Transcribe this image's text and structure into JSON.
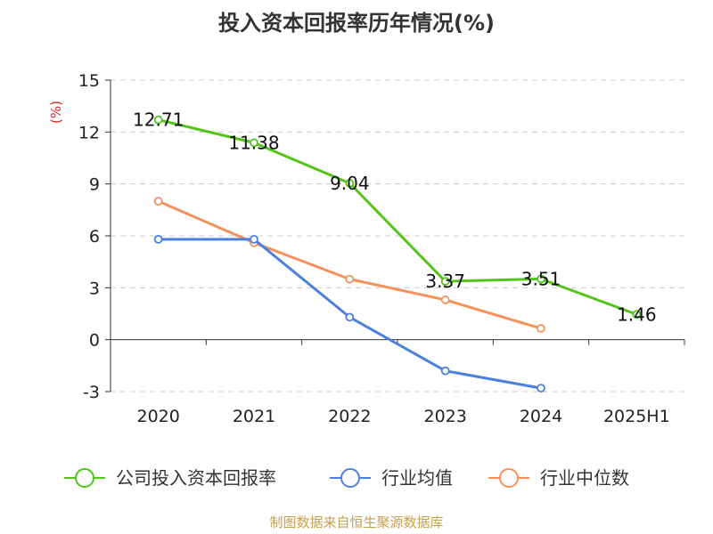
{
  "chart_data": {
    "type": "line",
    "title": "投入资本回报率历年情况(%)",
    "ylabel": "(%)",
    "categories": [
      "2020",
      "2021",
      "2022",
      "2023",
      "2024",
      "2025H1"
    ],
    "yticks": [
      "15",
      "12",
      "9",
      "6",
      "3",
      "0",
      "-3"
    ],
    "ylim": [
      -3,
      15
    ],
    "grid": true,
    "legend_position": "bottom",
    "series": [
      {
        "name": "公司投入资本回报率",
        "color": "#52c41a",
        "values": [
          12.71,
          11.38,
          9.04,
          3.37,
          3.51,
          1.46
        ],
        "labels": [
          "12.71",
          "11.38",
          "9.04",
          "3.37",
          "3.51",
          "1.46"
        ]
      },
      {
        "name": "行业均值",
        "color": "#4d7fdc",
        "values": [
          5.8,
          5.8,
          1.3,
          -1.8,
          -2.8,
          null
        ]
      },
      {
        "name": "行业中位数",
        "color": "#f5915a",
        "values": [
          8.0,
          5.6,
          3.5,
          2.3,
          0.65,
          null
        ]
      }
    ]
  },
  "footer": {
    "source": "制图数据来自恒生聚源数据库"
  }
}
